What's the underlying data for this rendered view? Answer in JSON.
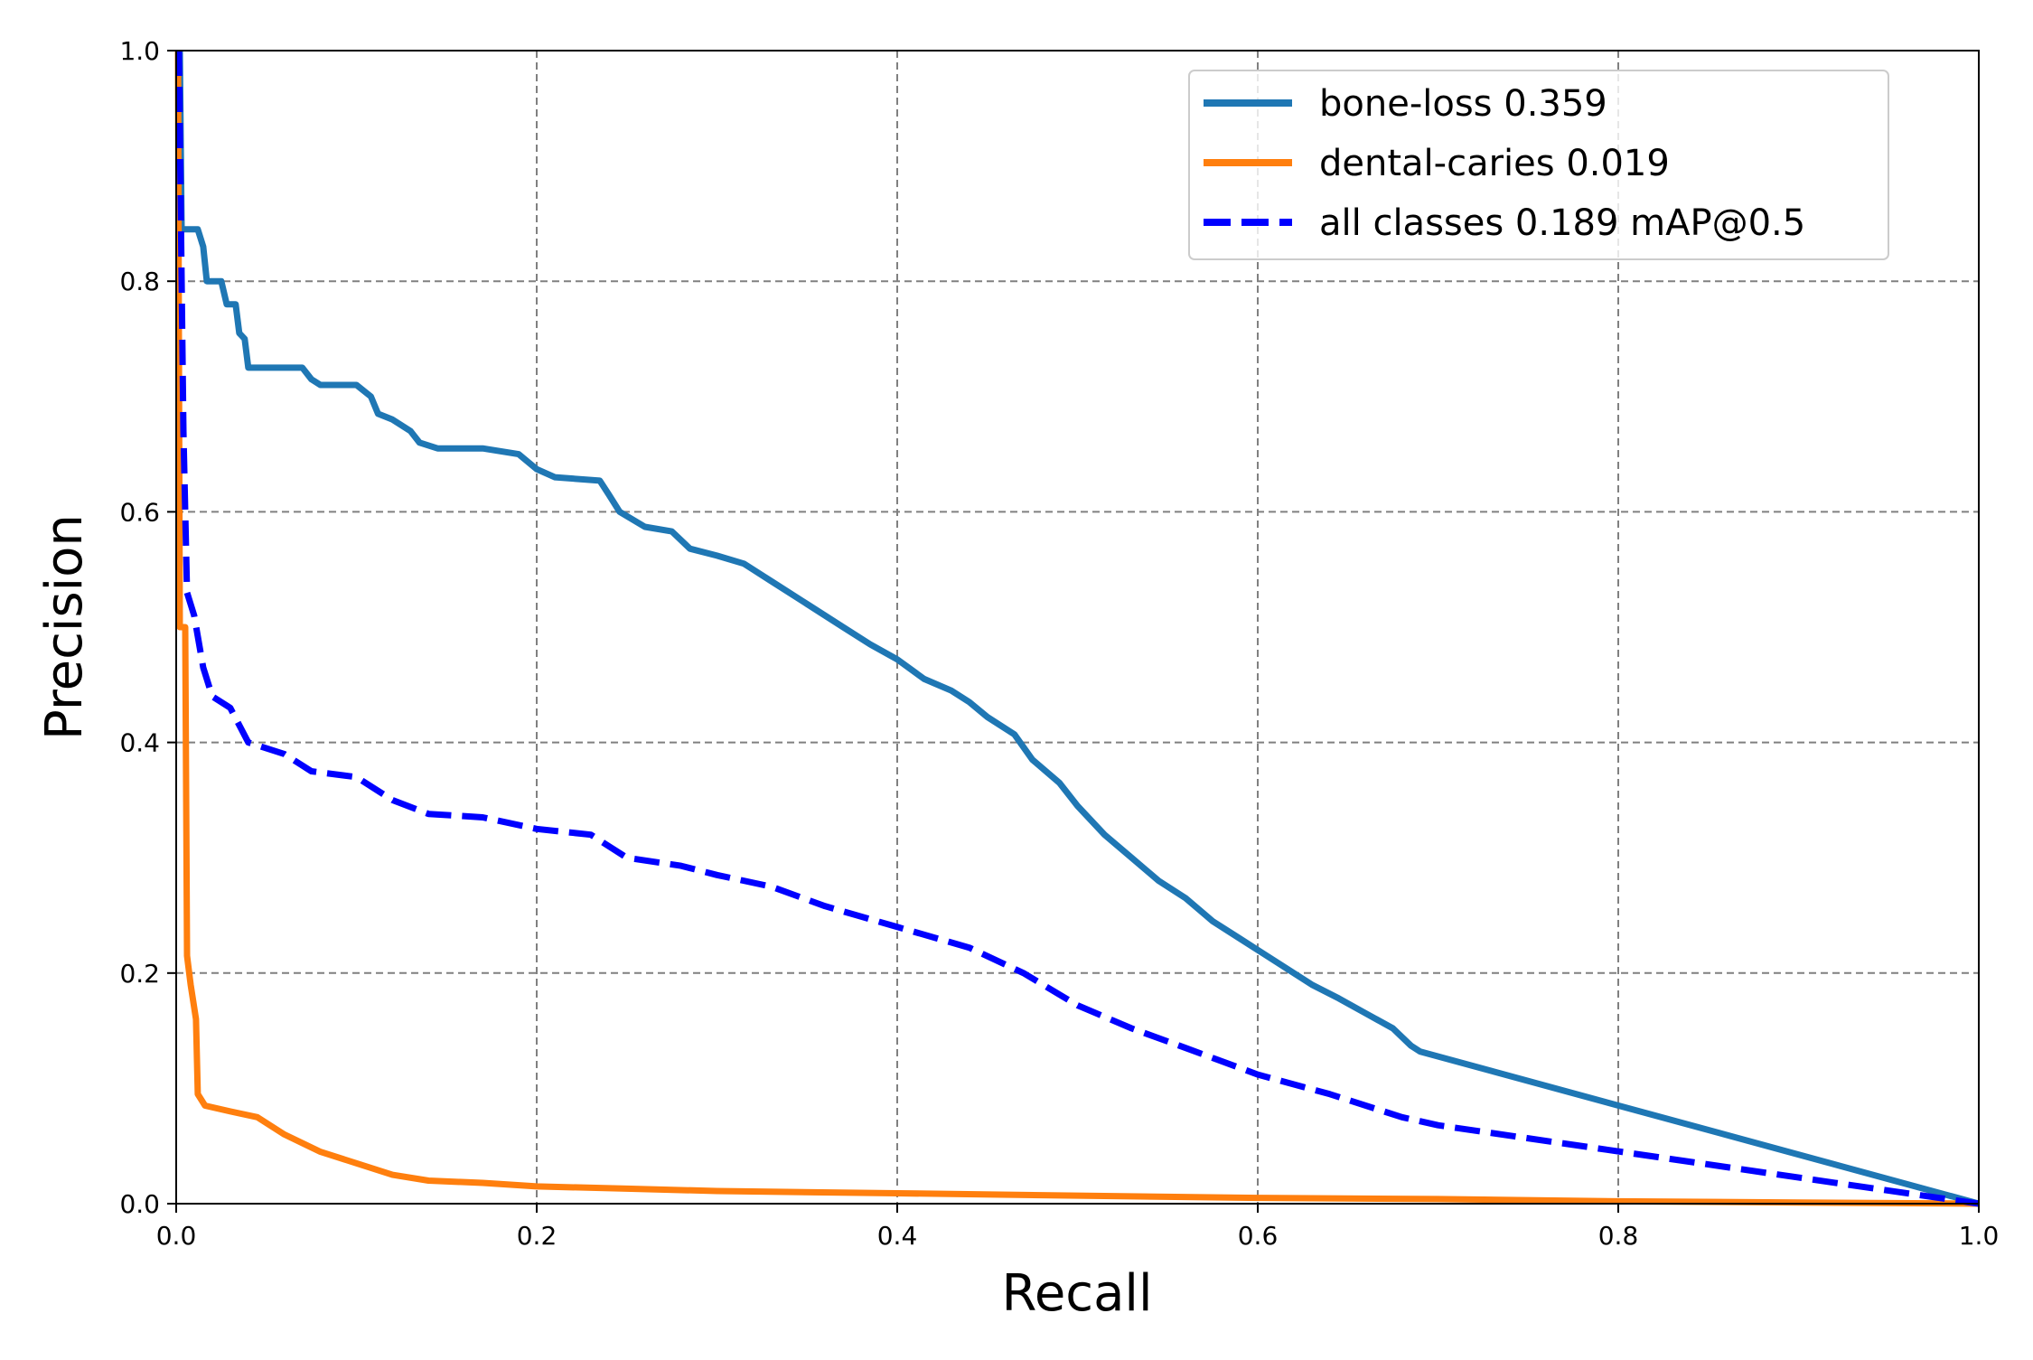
{
  "chart_data": {
    "type": "line",
    "title": "",
    "xlabel": "Recall",
    "ylabel": "Precision",
    "xlim": [
      0.0,
      1.0
    ],
    "ylim": [
      0.0,
      1.0
    ],
    "xticks": [
      "0.0",
      "0.2",
      "0.4",
      "0.6",
      "0.8",
      "1.0"
    ],
    "yticks": [
      "0.0",
      "0.2",
      "0.4",
      "0.6",
      "0.8",
      "1.0"
    ],
    "grid": true,
    "legend_position": "top-right",
    "series": [
      {
        "name": "bone-loss 0.359",
        "color": "#1f77b4",
        "style": "solid",
        "points": [
          [
            0.002,
            1.0
          ],
          [
            0.003,
            0.845
          ],
          [
            0.012,
            0.845
          ],
          [
            0.015,
            0.83
          ],
          [
            0.017,
            0.8
          ],
          [
            0.025,
            0.8
          ],
          [
            0.028,
            0.78
          ],
          [
            0.033,
            0.78
          ],
          [
            0.035,
            0.755
          ],
          [
            0.038,
            0.75
          ],
          [
            0.04,
            0.725
          ],
          [
            0.07,
            0.725
          ],
          [
            0.075,
            0.715
          ],
          [
            0.08,
            0.71
          ],
          [
            0.1,
            0.71
          ],
          [
            0.108,
            0.7
          ],
          [
            0.112,
            0.685
          ],
          [
            0.12,
            0.68
          ],
          [
            0.13,
            0.67
          ],
          [
            0.135,
            0.66
          ],
          [
            0.145,
            0.655
          ],
          [
            0.17,
            0.655
          ],
          [
            0.19,
            0.65
          ],
          [
            0.2,
            0.637
          ],
          [
            0.21,
            0.63
          ],
          [
            0.235,
            0.627
          ],
          [
            0.24,
            0.615
          ],
          [
            0.246,
            0.6
          ],
          [
            0.26,
            0.587
          ],
          [
            0.275,
            0.583
          ],
          [
            0.285,
            0.568
          ],
          [
            0.3,
            0.562
          ],
          [
            0.315,
            0.555
          ],
          [
            0.33,
            0.54
          ],
          [
            0.35,
            0.52
          ],
          [
            0.37,
            0.5
          ],
          [
            0.385,
            0.485
          ],
          [
            0.4,
            0.472
          ],
          [
            0.415,
            0.455
          ],
          [
            0.43,
            0.445
          ],
          [
            0.44,
            0.435
          ],
          [
            0.45,
            0.422
          ],
          [
            0.465,
            0.407
          ],
          [
            0.475,
            0.385
          ],
          [
            0.49,
            0.365
          ],
          [
            0.5,
            0.345
          ],
          [
            0.515,
            0.32
          ],
          [
            0.53,
            0.3
          ],
          [
            0.545,
            0.28
          ],
          [
            0.56,
            0.265
          ],
          [
            0.575,
            0.245
          ],
          [
            0.59,
            0.23
          ],
          [
            0.6,
            0.22
          ],
          [
            0.615,
            0.205
          ],
          [
            0.63,
            0.19
          ],
          [
            0.645,
            0.178
          ],
          [
            0.66,
            0.165
          ],
          [
            0.675,
            0.152
          ],
          [
            0.685,
            0.137
          ],
          [
            0.69,
            0.132
          ],
          [
            1.0,
            0.0
          ]
        ]
      },
      {
        "name": "dental-caries 0.019",
        "color": "#ff7f0e",
        "style": "solid",
        "points": [
          [
            0.001,
            1.0
          ],
          [
            0.002,
            0.5
          ],
          [
            0.005,
            0.5
          ],
          [
            0.006,
            0.215
          ],
          [
            0.008,
            0.19
          ],
          [
            0.011,
            0.16
          ],
          [
            0.012,
            0.095
          ],
          [
            0.016,
            0.085
          ],
          [
            0.03,
            0.08
          ],
          [
            0.045,
            0.075
          ],
          [
            0.06,
            0.06
          ],
          [
            0.08,
            0.045
          ],
          [
            0.1,
            0.035
          ],
          [
            0.12,
            0.025
          ],
          [
            0.14,
            0.02
          ],
          [
            0.17,
            0.018
          ],
          [
            0.2,
            0.015
          ],
          [
            0.25,
            0.013
          ],
          [
            0.3,
            0.011
          ],
          [
            0.4,
            0.009
          ],
          [
            0.5,
            0.007
          ],
          [
            0.6,
            0.005
          ],
          [
            0.7,
            0.004
          ],
          [
            0.8,
            0.002
          ],
          [
            0.9,
            0.001
          ],
          [
            1.0,
            0.0
          ]
        ]
      },
      {
        "name": "all classes 0.189 mAP@0.5",
        "color": "#0000ff",
        "style": "dashed",
        "points": [
          [
            0.0015,
            1.0
          ],
          [
            0.004,
            0.67
          ],
          [
            0.006,
            0.53
          ],
          [
            0.01,
            0.51
          ],
          [
            0.015,
            0.465
          ],
          [
            0.02,
            0.44
          ],
          [
            0.03,
            0.43
          ],
          [
            0.04,
            0.4
          ],
          [
            0.06,
            0.39
          ],
          [
            0.075,
            0.375
          ],
          [
            0.1,
            0.37
          ],
          [
            0.12,
            0.35
          ],
          [
            0.14,
            0.338
          ],
          [
            0.17,
            0.335
          ],
          [
            0.2,
            0.325
          ],
          [
            0.23,
            0.32
          ],
          [
            0.25,
            0.3
          ],
          [
            0.28,
            0.293
          ],
          [
            0.3,
            0.285
          ],
          [
            0.33,
            0.275
          ],
          [
            0.36,
            0.258
          ],
          [
            0.4,
            0.24
          ],
          [
            0.44,
            0.222
          ],
          [
            0.47,
            0.2
          ],
          [
            0.5,
            0.172
          ],
          [
            0.53,
            0.152
          ],
          [
            0.56,
            0.135
          ],
          [
            0.6,
            0.112
          ],
          [
            0.64,
            0.095
          ],
          [
            0.68,
            0.075
          ],
          [
            0.7,
            0.068
          ],
          [
            1.0,
            0.0
          ]
        ]
      }
    ]
  }
}
